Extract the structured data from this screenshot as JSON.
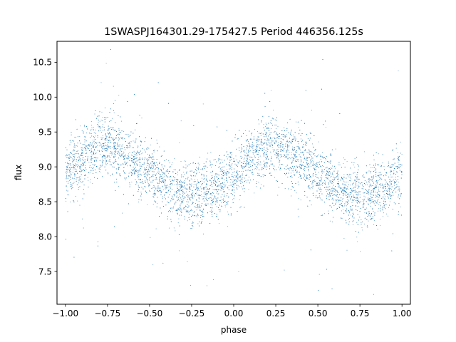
{
  "chart_data": {
    "type": "scatter",
    "title": "1SWASPJ164301.29-175427.5 Period 446356.125s",
    "xlabel": "phase",
    "ylabel": "flux",
    "xlim": [
      -1.05,
      1.05
    ],
    "ylim": [
      7.03,
      10.8
    ],
    "xticks": [
      -1.0,
      -0.75,
      -0.5,
      -0.25,
      0.0,
      0.25,
      0.5,
      0.75,
      1.0
    ],
    "xtick_labels": [
      "−1.00",
      "−0.75",
      "−0.50",
      "−0.25",
      "0.00",
      "0.25",
      "0.50",
      "0.75",
      "1.00"
    ],
    "yticks": [
      7.5,
      8.0,
      8.5,
      9.0,
      9.5,
      10.0,
      10.5
    ],
    "ytick_labels": [
      "7.5",
      "8.0",
      "8.5",
      "9.0",
      "9.5",
      "10.0",
      "10.5"
    ],
    "grid": false,
    "marker_color": "#1f77b4",
    "series": [
      {
        "profile_phase": [
          -1.0,
          -0.9,
          -0.8,
          -0.75,
          -0.7,
          -0.6,
          -0.5,
          -0.4,
          -0.3,
          -0.25,
          -0.2,
          -0.1,
          0.0,
          0.1,
          0.2,
          0.25,
          0.3,
          0.4,
          0.5,
          0.6,
          0.7,
          0.75,
          0.8,
          0.9,
          1.0
        ],
        "profile_flux": [
          8.9,
          9.1,
          9.3,
          9.35,
          9.25,
          9.1,
          8.9,
          8.7,
          8.6,
          8.55,
          8.6,
          8.7,
          8.9,
          9.1,
          9.3,
          9.35,
          9.25,
          9.1,
          8.9,
          8.7,
          8.6,
          8.55,
          8.6,
          8.7,
          8.9
        ],
        "scatter_spread": 0.22,
        "n_points": 9000
      }
    ]
  }
}
